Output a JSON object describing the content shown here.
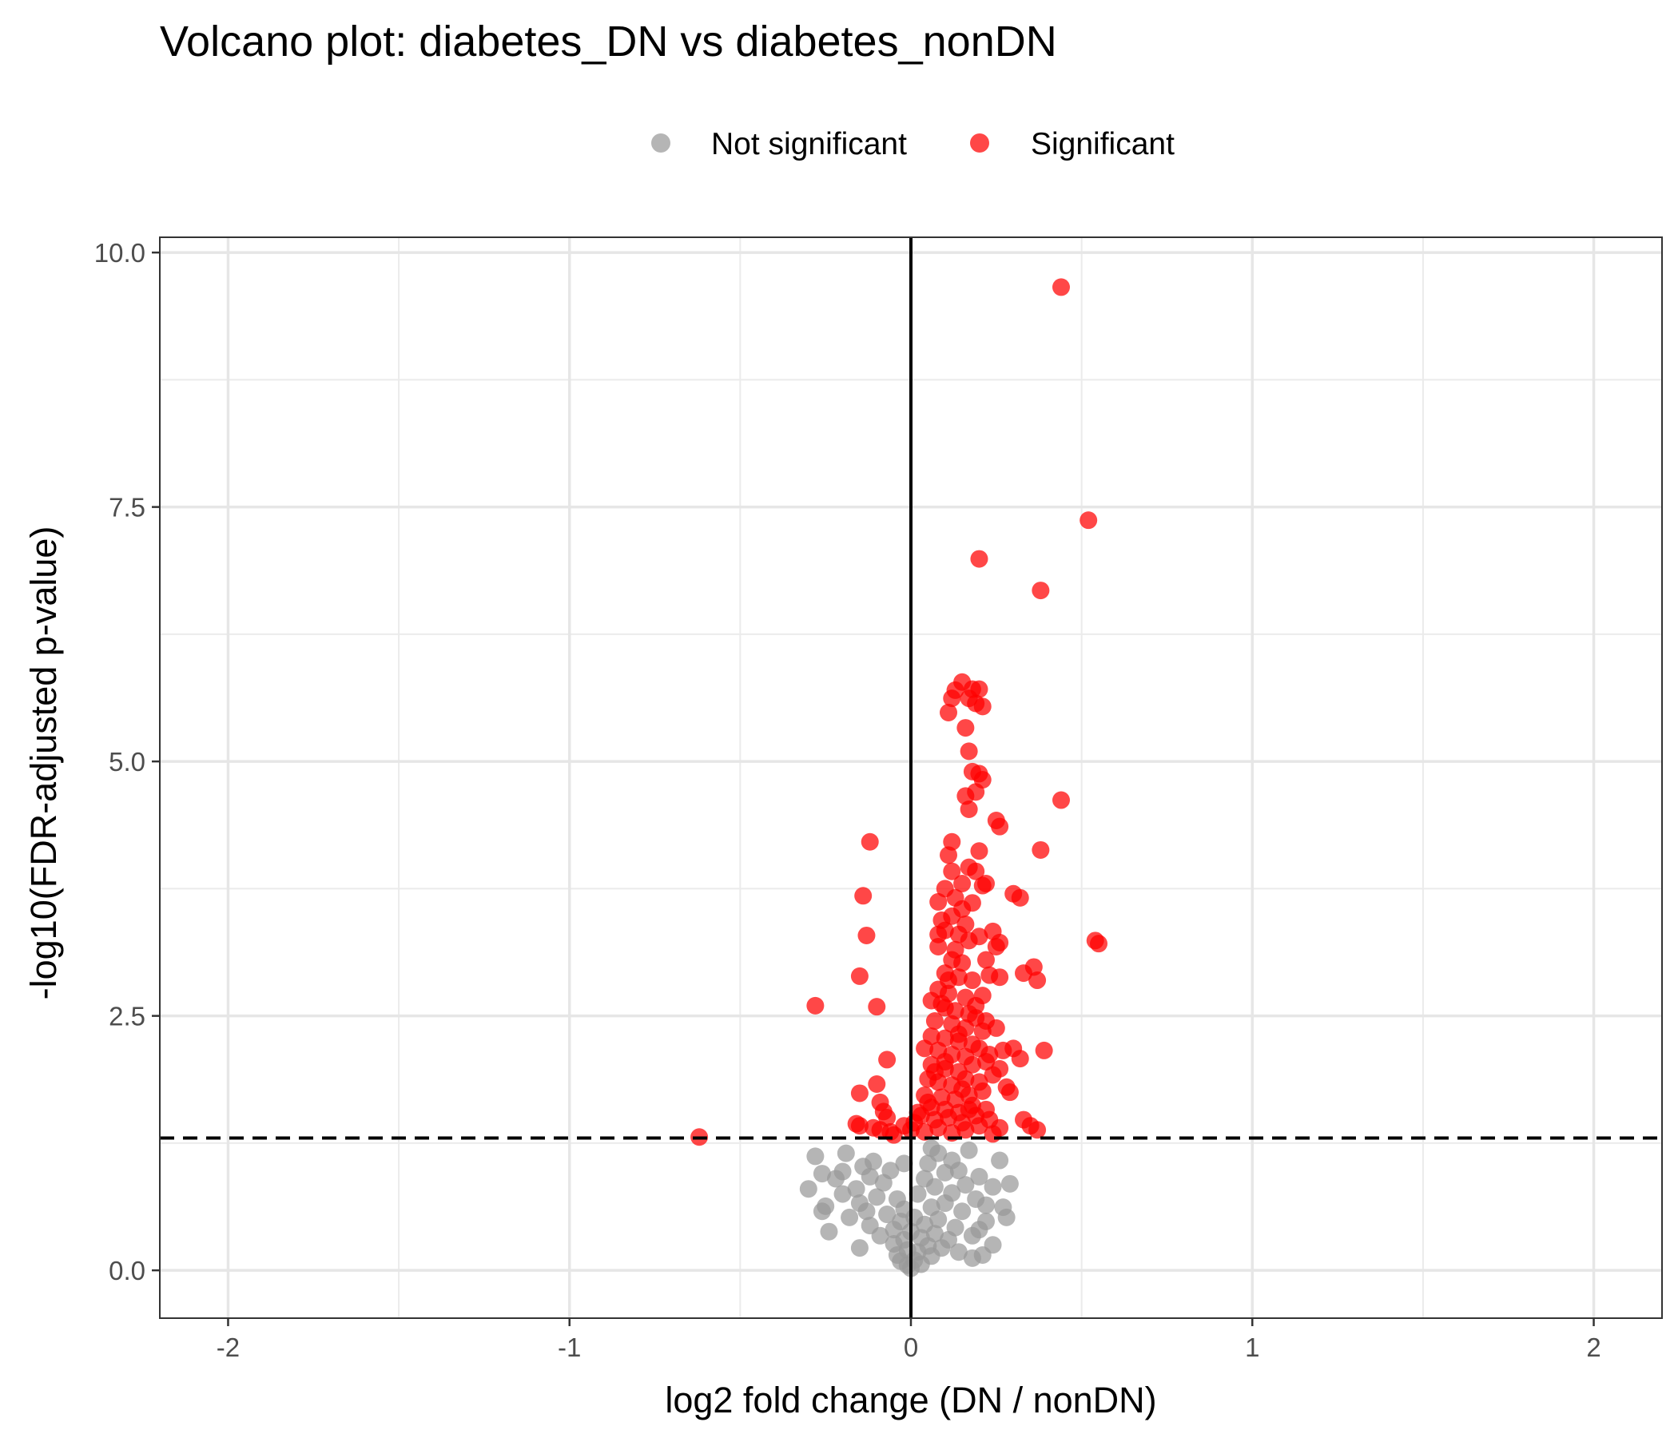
{
  "chart_data": {
    "type": "scatter",
    "title": "Volcano plot: diabetes_DN vs diabetes_nonDN",
    "xlabel": "log2 fold change (DN / nonDN)",
    "ylabel": "-log10(FDR-adjusted p-value)",
    "xlim": [
      -2.2,
      2.2
    ],
    "ylim": [
      -0.47,
      10.15
    ],
    "x_ticks": [
      -2,
      -1,
      0,
      1,
      2
    ],
    "x_tick_labels": [
      "-2",
      "-1",
      "0",
      "1",
      "2"
    ],
    "y_ticks": [
      0,
      2.5,
      5,
      7.5,
      10
    ],
    "y_tick_labels": [
      "0.0",
      "2.5",
      "5.0",
      "7.5",
      "10.0"
    ],
    "grid": true,
    "legend_position": "top",
    "reference_lines": {
      "vertical_x": 0,
      "horizontal_dashed_y": 1.3
    },
    "series": [
      {
        "name": "Not significant",
        "color": "#999999",
        "points": [
          [
            -0.28,
            1.12
          ],
          [
            -0.26,
            0.95
          ],
          [
            -0.25,
            0.63
          ],
          [
            -0.26,
            0.58
          ],
          [
            -0.24,
            0.38
          ],
          [
            -0.22,
            0.9
          ],
          [
            -0.2,
            0.97
          ],
          [
            -0.2,
            0.75
          ],
          [
            -0.19,
            1.15
          ],
          [
            -0.18,
            0.52
          ],
          [
            -0.16,
            0.8
          ],
          [
            -0.15,
            0.66
          ],
          [
            -0.14,
            1.02
          ],
          [
            -0.13,
            0.58
          ],
          [
            -0.12,
            0.92
          ],
          [
            -0.12,
            0.44
          ],
          [
            -0.11,
            1.07
          ],
          [
            -0.1,
            0.72
          ],
          [
            -0.09,
            0.34
          ],
          [
            -0.08,
            0.86
          ],
          [
            -0.07,
            0.55
          ],
          [
            -0.06,
            0.98
          ],
          [
            -0.05,
            0.4
          ],
          [
            -0.05,
            0.26
          ],
          [
            -0.04,
            0.7
          ],
          [
            -0.04,
            0.15
          ],
          [
            -0.03,
            0.48
          ],
          [
            -0.03,
            0.09
          ],
          [
            -0.02,
            0.3
          ],
          [
            -0.02,
            0.6
          ],
          [
            -0.01,
            0.05
          ],
          [
            -0.01,
            0.2
          ],
          [
            0.0,
            0.02
          ],
          [
            0.0,
            0.38
          ],
          [
            0.01,
            0.1
          ],
          [
            0.01,
            0.52
          ],
          [
            0.02,
            0.18
          ],
          [
            0.02,
            0.75
          ],
          [
            0.03,
            0.32
          ],
          [
            0.03,
            0.06
          ],
          [
            0.04,
            0.9
          ],
          [
            0.04,
            0.45
          ],
          [
            0.05,
            0.24
          ],
          [
            0.05,
            1.05
          ],
          [
            0.06,
            0.62
          ],
          [
            0.06,
            0.14
          ],
          [
            0.07,
            0.82
          ],
          [
            0.07,
            0.36
          ],
          [
            0.08,
            1.15
          ],
          [
            0.08,
            0.5
          ],
          [
            0.09,
            0.22
          ],
          [
            0.1,
            0.96
          ],
          [
            0.1,
            0.66
          ],
          [
            0.11,
            0.3
          ],
          [
            0.12,
            1.08
          ],
          [
            0.12,
            0.76
          ],
          [
            0.13,
            0.42
          ],
          [
            0.14,
            0.98
          ],
          [
            0.15,
            0.58
          ],
          [
            0.16,
            0.84
          ],
          [
            0.17,
            1.18
          ],
          [
            0.18,
            0.34
          ],
          [
            0.19,
            0.7
          ],
          [
            0.2,
            0.92
          ],
          [
            0.2,
            0.4
          ],
          [
            0.21,
            0.15
          ],
          [
            0.22,
            0.64
          ],
          [
            0.24,
            0.82
          ],
          [
            0.24,
            0.25
          ],
          [
            0.26,
            1.08
          ],
          [
            0.27,
            0.62
          ],
          [
            0.28,
            0.52
          ],
          [
            -0.3,
            0.8
          ],
          [
            0.29,
            0.85
          ],
          [
            0.18,
            0.12
          ],
          [
            0.22,
            0.48
          ],
          [
            0.14,
            0.18
          ],
          [
            -0.15,
            0.22
          ],
          [
            0.06,
            1.2
          ],
          [
            -0.02,
            1.05
          ]
        ]
      },
      {
        "name": "Significant",
        "color": "#ff0000",
        "points": [
          [
            0.44,
            9.66
          ],
          [
            0.52,
            7.37
          ],
          [
            0.2,
            6.99
          ],
          [
            0.38,
            6.68
          ],
          [
            0.15,
            5.78
          ],
          [
            0.13,
            5.7
          ],
          [
            0.18,
            5.71
          ],
          [
            0.2,
            5.71
          ],
          [
            0.12,
            5.62
          ],
          [
            0.17,
            5.62
          ],
          [
            0.19,
            5.57
          ],
          [
            0.21,
            5.54
          ],
          [
            0.11,
            5.48
          ],
          [
            0.16,
            5.33
          ],
          [
            0.17,
            5.1
          ],
          [
            0.18,
            4.9
          ],
          [
            0.2,
            4.88
          ],
          [
            0.21,
            4.82
          ],
          [
            0.16,
            4.66
          ],
          [
            0.19,
            4.7
          ],
          [
            0.17,
            4.53
          ],
          [
            0.25,
            4.42
          ],
          [
            0.26,
            4.36
          ],
          [
            0.44,
            4.62
          ],
          [
            -0.12,
            4.21
          ],
          [
            0.12,
            4.21
          ],
          [
            0.2,
            4.12
          ],
          [
            0.38,
            4.13
          ],
          [
            0.11,
            4.08
          ],
          [
            0.17,
            3.96
          ],
          [
            0.19,
            3.92
          ],
          [
            0.21,
            3.78
          ],
          [
            0.1,
            3.75
          ],
          [
            0.15,
            3.8
          ],
          [
            0.22,
            3.8
          ],
          [
            0.3,
            3.7
          ],
          [
            0.32,
            3.66
          ],
          [
            -0.14,
            3.68
          ],
          [
            0.08,
            3.62
          ],
          [
            0.13,
            3.66
          ],
          [
            0.18,
            3.61
          ],
          [
            0.09,
            3.44
          ],
          [
            0.12,
            3.48
          ],
          [
            0.16,
            3.4
          ],
          [
            -0.13,
            3.29
          ],
          [
            0.08,
            3.3
          ],
          [
            0.1,
            3.34
          ],
          [
            0.14,
            3.3
          ],
          [
            0.17,
            3.24
          ],
          [
            0.2,
            3.28
          ],
          [
            0.24,
            3.33
          ],
          [
            0.26,
            3.22
          ],
          [
            0.25,
            3.18
          ],
          [
            0.54,
            3.24
          ],
          [
            0.55,
            3.21
          ],
          [
            0.08,
            3.18
          ],
          [
            0.12,
            3.05
          ],
          [
            0.15,
            3.02
          ],
          [
            0.22,
            3.05
          ],
          [
            0.1,
            2.92
          ],
          [
            0.14,
            2.88
          ],
          [
            0.18,
            2.85
          ],
          [
            0.23,
            2.9
          ],
          [
            0.26,
            2.88
          ],
          [
            0.33,
            2.92
          ],
          [
            0.36,
            2.98
          ],
          [
            0.37,
            2.85
          ],
          [
            -0.15,
            2.89
          ],
          [
            0.08,
            2.76
          ],
          [
            0.11,
            2.72
          ],
          [
            0.16,
            2.68
          ],
          [
            0.21,
            2.7
          ],
          [
            0.06,
            2.65
          ],
          [
            0.1,
            2.58
          ],
          [
            0.13,
            2.55
          ],
          [
            0.17,
            2.52
          ],
          [
            -0.28,
            2.6
          ],
          [
            -0.1,
            2.59
          ],
          [
            0.07,
            2.45
          ],
          [
            0.12,
            2.42
          ],
          [
            0.16,
            2.38
          ],
          [
            0.19,
            2.48
          ],
          [
            0.22,
            2.45
          ],
          [
            0.25,
            2.38
          ],
          [
            0.06,
            2.3
          ],
          [
            0.1,
            2.28
          ],
          [
            0.14,
            2.25
          ],
          [
            0.18,
            2.22
          ],
          [
            0.04,
            2.18
          ],
          [
            0.08,
            2.16
          ],
          [
            0.12,
            2.12
          ],
          [
            0.16,
            2.1
          ],
          [
            0.2,
            2.18
          ],
          [
            0.27,
            2.16
          ],
          [
            0.3,
            2.18
          ],
          [
            0.39,
            2.16
          ],
          [
            -0.07,
            2.07
          ],
          [
            0.06,
            2.02
          ],
          [
            0.1,
            1.98
          ],
          [
            0.14,
            1.95
          ],
          [
            0.18,
            2.02
          ],
          [
            0.22,
            2.05
          ],
          [
            0.26,
            1.98
          ],
          [
            0.32,
            2.08
          ],
          [
            0.05,
            1.88
          ],
          [
            0.08,
            1.85
          ],
          [
            0.12,
            1.82
          ],
          [
            0.16,
            1.88
          ],
          [
            0.2,
            1.85
          ],
          [
            0.24,
            1.92
          ],
          [
            0.28,
            1.8
          ],
          [
            0.29,
            1.75
          ],
          [
            -0.1,
            1.83
          ],
          [
            -0.15,
            1.74
          ],
          [
            0.04,
            1.72
          ],
          [
            0.09,
            1.7
          ],
          [
            0.13,
            1.68
          ],
          [
            0.17,
            1.72
          ],
          [
            0.21,
            1.76
          ],
          [
            -0.09,
            1.65
          ],
          [
            0.06,
            1.6
          ],
          [
            0.1,
            1.58
          ],
          [
            0.14,
            1.55
          ],
          [
            0.18,
            1.62
          ],
          [
            0.22,
            1.58
          ],
          [
            -0.08,
            1.56
          ],
          [
            0.03,
            1.52
          ],
          [
            0.07,
            1.48
          ],
          [
            0.11,
            1.5
          ],
          [
            0.15,
            1.45
          ],
          [
            0.19,
            1.52
          ],
          [
            0.23,
            1.48
          ],
          [
            -0.07,
            1.5
          ],
          [
            0.33,
            1.48
          ],
          [
            0.35,
            1.42
          ],
          [
            0.37,
            1.38
          ],
          [
            0.26,
            1.4
          ],
          [
            -0.16,
            1.44
          ],
          [
            -0.15,
            1.42
          ],
          [
            -0.11,
            1.4
          ],
          [
            -0.09,
            1.38
          ],
          [
            -0.06,
            1.36
          ],
          [
            -0.05,
            1.33
          ],
          [
            -0.02,
            1.42
          ],
          [
            0.04,
            1.36
          ],
          [
            0.08,
            1.4
          ],
          [
            0.12,
            1.35
          ],
          [
            0.16,
            1.38
          ],
          [
            0.2,
            1.42
          ],
          [
            0.24,
            1.34
          ],
          [
            0.0,
            1.38
          ],
          [
            -0.62,
            1.31
          ],
          [
            0.09,
            2.62
          ],
          [
            0.11,
            2.85
          ],
          [
            0.13,
            3.15
          ],
          [
            0.15,
            3.55
          ],
          [
            0.12,
            3.92
          ],
          [
            0.14,
            2.32
          ],
          [
            0.1,
            2.05
          ],
          [
            0.07,
            1.95
          ],
          [
            0.19,
            2.6
          ],
          [
            0.21,
            2.35
          ],
          [
            0.23,
            2.12
          ],
          [
            0.15,
            1.78
          ],
          [
            0.17,
            1.58
          ],
          [
            0.05,
            1.65
          ],
          [
            0.02,
            1.55
          ],
          [
            0.01,
            1.45
          ]
        ]
      }
    ]
  }
}
